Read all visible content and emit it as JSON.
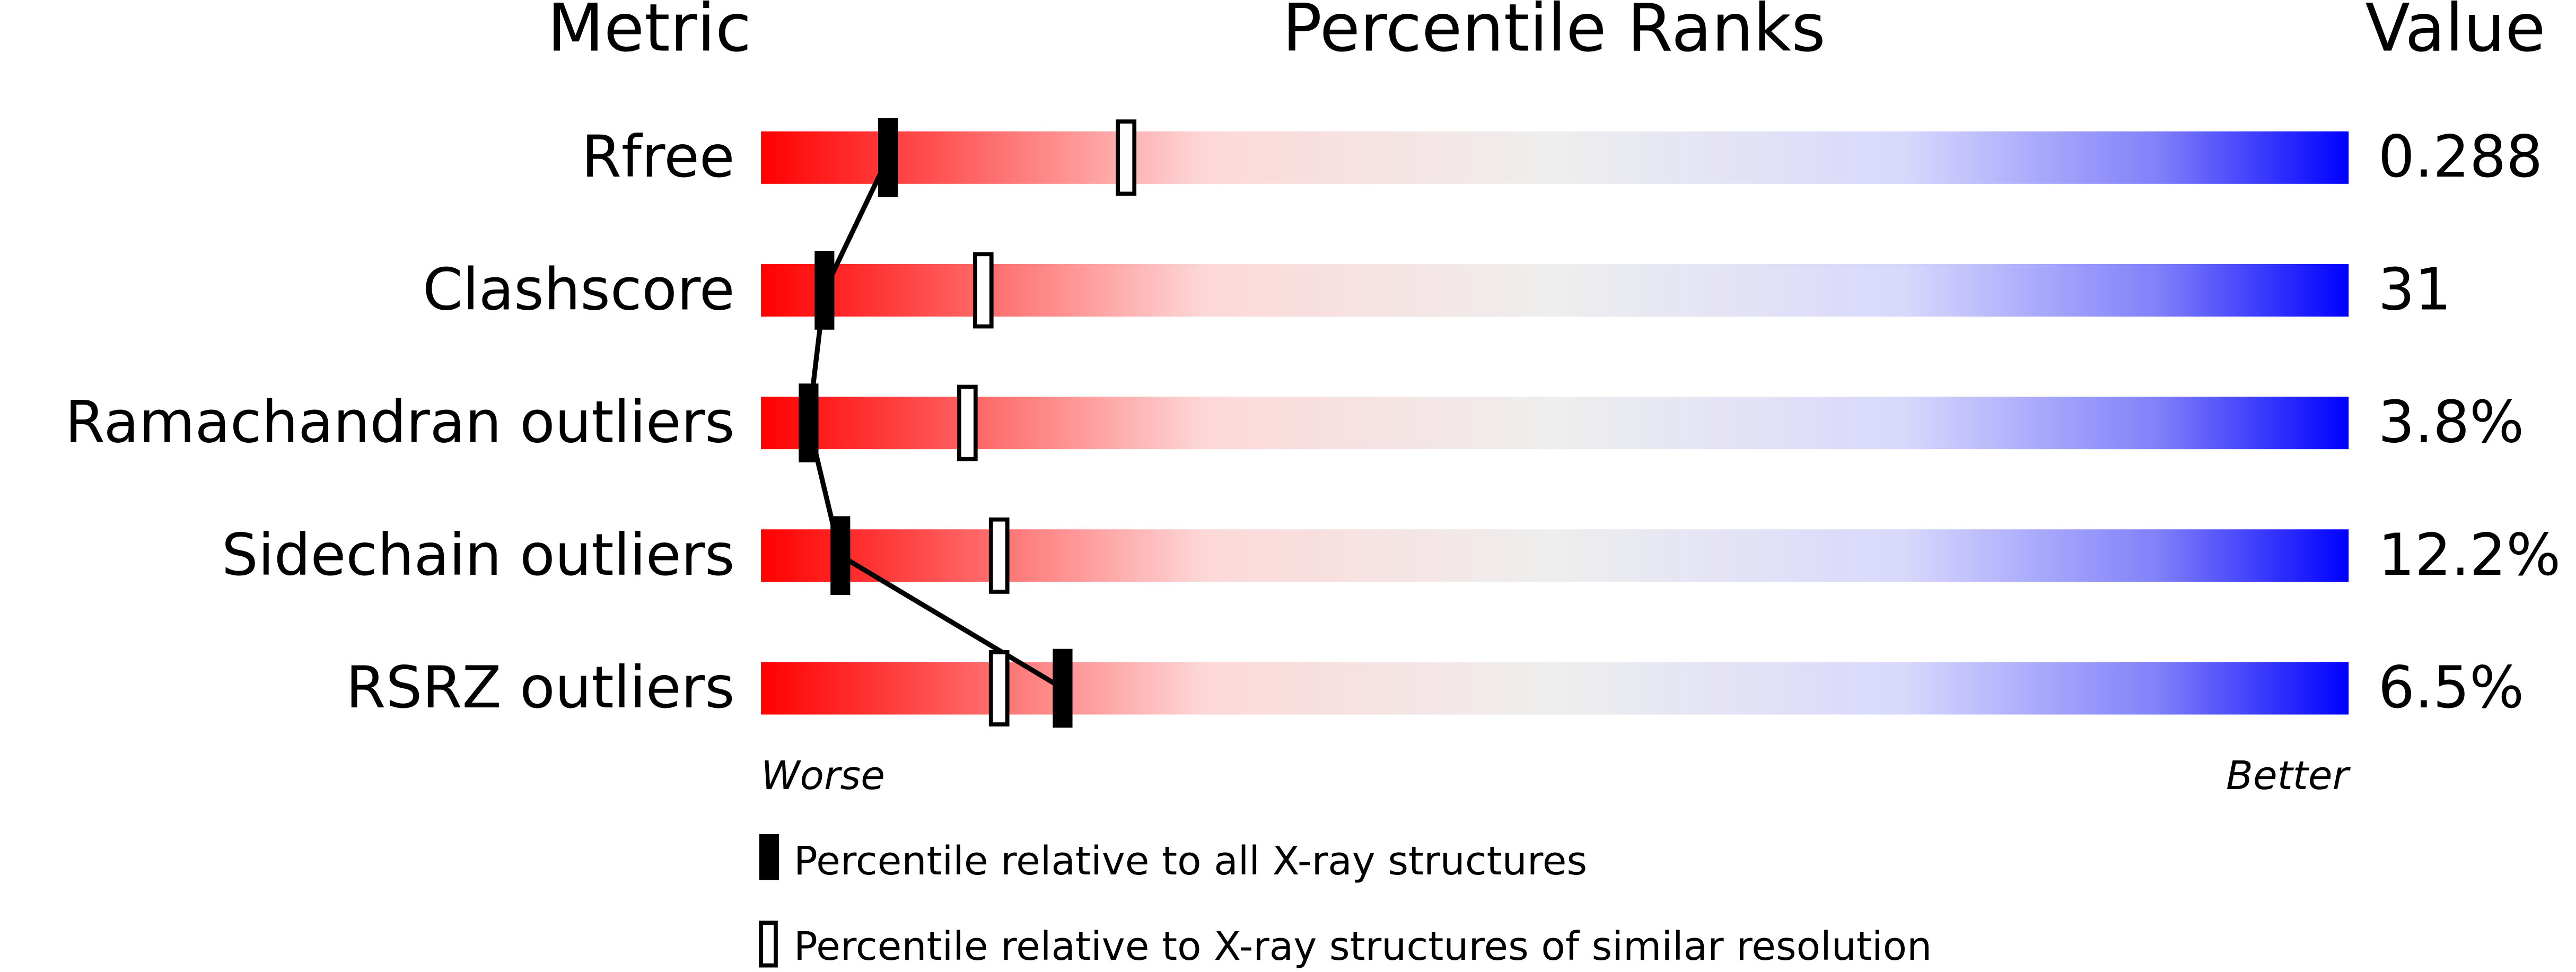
{
  "chart_data": {
    "type": "percentile",
    "headers": {
      "metric": "Metric",
      "ranks": "Percentile Ranks",
      "value": "Value"
    },
    "categories": [
      "Rfree",
      "Clashscore",
      "Ramachandran outliers",
      "Sidechain outliers",
      "RSRZ outliers"
    ],
    "metric_values": [
      "0.288",
      "31",
      "3.8%",
      "12.2%",
      "6.5%"
    ],
    "series": [
      {
        "name": "Percentile relative to all X-ray structures",
        "color": "#000000",
        "values": [
          8,
          4,
          3,
          5,
          19
        ]
      },
      {
        "name": "Percentile relative to X-ray structures of similar resolution",
        "color": "#000000",
        "values": [
          23,
          14,
          13,
          15,
          15
        ]
      }
    ],
    "xlim": [
      0,
      100
    ],
    "axis_ends": {
      "low": "Worse",
      "high": "Better"
    }
  }
}
